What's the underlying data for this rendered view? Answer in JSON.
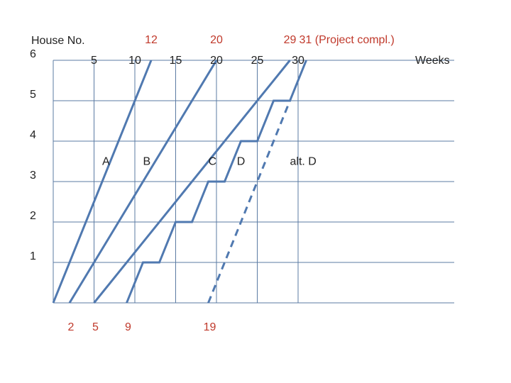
{
  "chart_data": {
    "type": "line",
    "y_axis_label": "House No.",
    "x_axis_label": "Weeks",
    "x_ticks": [
      "5",
      "10",
      "15",
      "20",
      "25",
      "30"
    ],
    "y_ticks": [
      "1",
      "2",
      "3",
      "4",
      "5",
      "6"
    ],
    "top_markers": [
      "12",
      "20",
      "29",
      "31 (Project compl.)"
    ],
    "bottom_markers": [
      "2",
      "5",
      "9",
      "19"
    ],
    "xlim": [
      0,
      40
    ],
    "ylim": [
      0,
      6
    ],
    "grid": true,
    "series": [
      {
        "name": "A",
        "style": "solid",
        "points": [
          [
            0,
            0
          ],
          [
            12,
            6
          ]
        ]
      },
      {
        "name": "B",
        "style": "solid",
        "points": [
          [
            2,
            0
          ],
          [
            20,
            6
          ]
        ]
      },
      {
        "name": "C",
        "style": "solid",
        "points": [
          [
            5,
            0
          ],
          [
            29,
            6
          ]
        ]
      },
      {
        "name": "D",
        "style": "solid",
        "points": [
          [
            9,
            0
          ],
          [
            11,
            1
          ],
          [
            13,
            1
          ],
          [
            15,
            2
          ],
          [
            17,
            2
          ],
          [
            19,
            3
          ],
          [
            21,
            3
          ],
          [
            23,
            4
          ],
          [
            25,
            4
          ],
          [
            27,
            5
          ],
          [
            29,
            5
          ],
          [
            31,
            6
          ]
        ]
      },
      {
        "name": "alt. D",
        "style": "dashed",
        "points": [
          [
            19,
            0
          ],
          [
            29,
            5
          ]
        ]
      }
    ],
    "series_label_positions": {
      "A": [
        6,
        3.5
      ],
      "B": [
        11,
        3.5
      ],
      "C": [
        19,
        3.5
      ],
      "D": [
        22.5,
        3.5
      ],
      "alt. D": [
        29,
        3.5
      ]
    }
  }
}
